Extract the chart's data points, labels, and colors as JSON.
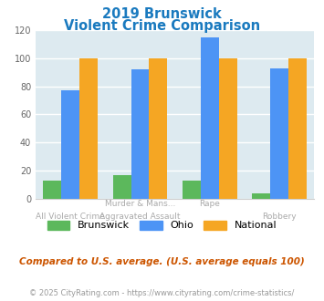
{
  "title_line1": "2019 Brunswick",
  "title_line2": "Violent Crime Comparison",
  "cat_labels_line1": [
    "",
    "Murder & Mans...",
    "Rape",
    ""
  ],
  "cat_labels_line2": [
    "All Violent Crime",
    "Aggravated Assault",
    "",
    "Robbery"
  ],
  "brunswick": [
    13,
    17,
    13,
    4
  ],
  "ohio": [
    77,
    92,
    115,
    93
  ],
  "national": [
    100,
    100,
    100,
    100
  ],
  "brunswick_color": "#5cb85c",
  "ohio_color": "#4d94f5",
  "national_color": "#f5a623",
  "title_color": "#1a7abf",
  "bg_color": "#ddeaf0",
  "ylim": [
    0,
    120
  ],
  "yticks": [
    0,
    20,
    40,
    60,
    80,
    100,
    120
  ],
  "footnote": "Compared to U.S. average. (U.S. average equals 100)",
  "copyright": "© 2025 CityRating.com - https://www.cityrating.com/crime-statistics/",
  "footnote_color": "#cc5500",
  "copyright_color": "#999999",
  "xlabel_color": "#aaaaaa",
  "legend_label_color": "#333333"
}
